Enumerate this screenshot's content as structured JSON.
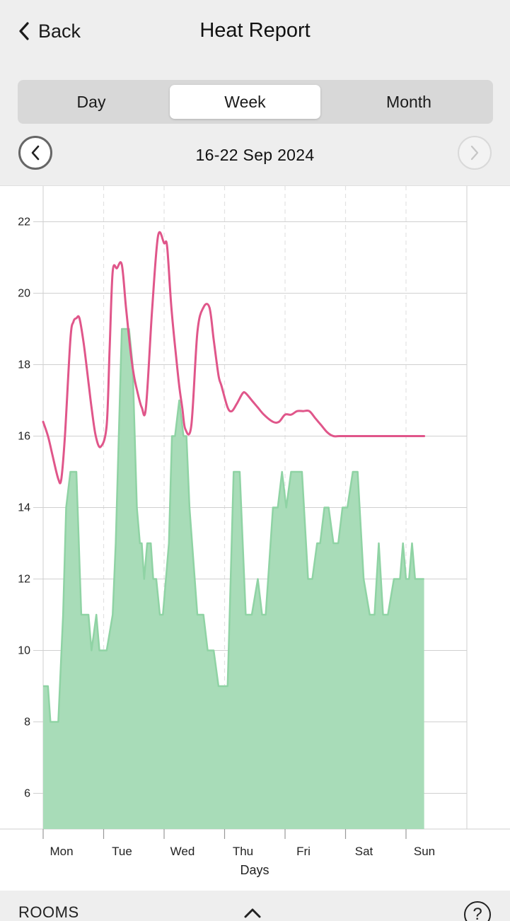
{
  "header": {
    "back_label": "Back",
    "title": "Heat Report"
  },
  "segments": {
    "day": "Day",
    "week": "Week",
    "month": "Month",
    "selected": "Week"
  },
  "date_range": "16-22 Sep 2024",
  "footer": {
    "rooms_label": "ROOMS",
    "help_label": "?"
  },
  "colors": {
    "temperature_line": "#e0568a",
    "heating_fill": "#a8dcb8",
    "heating_stroke": "#8fd3a4",
    "grid": "#d0d0d0"
  },
  "chart_data": {
    "type": "area",
    "xlabel": "Days",
    "ylabel": "",
    "categories": [
      "Mon",
      "Tue",
      "Wed",
      "Thu",
      "Fri",
      "Sat",
      "Sun"
    ],
    "xlim": [
      0,
      7
    ],
    "ylim": [
      5,
      23
    ],
    "yticks": [
      6,
      8,
      10,
      12,
      14,
      16,
      18,
      20,
      22
    ],
    "grid": true,
    "series": [
      {
        "kind": "line",
        "x": [
          0,
          0.08,
          0.15,
          0.25,
          0.3,
          0.36,
          0.45,
          0.5,
          0.55,
          0.6,
          0.67,
          0.75,
          0.8,
          0.87,
          0.95,
          1.05,
          1.1,
          1.15,
          1.22,
          1.3,
          1.37,
          1.45,
          1.5,
          1.55,
          1.63,
          1.7,
          1.8,
          1.9,
          2.0,
          2.05,
          2.12,
          2.2,
          2.25,
          2.3,
          2.35,
          2.45,
          2.55,
          2.65,
          2.75,
          2.82,
          2.9,
          2.95,
          3.05,
          3.12,
          3.2,
          3.3,
          3.35,
          3.45,
          3.55,
          3.65,
          3.8,
          3.9,
          4.0,
          4.1,
          4.2,
          4.3,
          4.4,
          4.5,
          4.6,
          4.7,
          4.8,
          4.9,
          5.0,
          5.1,
          5.2,
          5.3,
          5.4,
          5.5,
          5.6,
          5.7,
          5.8,
          5.9,
          6.0,
          6.1,
          6.2,
          6.3
        ],
        "values": [
          16.4,
          16.0,
          15.5,
          14.8,
          14.8,
          16.0,
          18.7,
          19.2,
          19.3,
          19.3,
          18.6,
          17.5,
          16.8,
          16.0,
          15.7,
          16.3,
          18.5,
          20.6,
          20.7,
          20.8,
          19.6,
          18.3,
          17.7,
          17.3,
          16.8,
          16.8,
          19.5,
          21.6,
          21.4,
          21.3,
          19.6,
          18.2,
          17.4,
          16.8,
          16.2,
          16.3,
          18.9,
          19.6,
          19.6,
          18.7,
          17.7,
          17.4,
          16.8,
          16.7,
          16.9,
          17.2,
          17.2,
          17.0,
          16.8,
          16.6,
          16.4,
          16.4,
          16.6,
          16.6,
          16.7,
          16.7,
          16.7,
          16.5,
          16.3,
          16.1,
          16.0,
          16.0,
          16.0,
          16.0,
          16.0,
          16.0,
          16.0,
          16.0,
          16.0,
          16.0,
          16.0,
          16.0,
          16.0,
          16.0,
          16.0,
          16.0
        ]
      },
      {
        "kind": "area",
        "x": [
          0,
          0.08,
          0.12,
          0.25,
          0.33,
          0.38,
          0.45,
          0.5,
          0.55,
          0.63,
          0.75,
          0.8,
          0.88,
          0.93,
          0.98,
          1.05,
          1.15,
          1.2,
          1.3,
          1.42,
          1.48,
          1.55,
          1.6,
          1.63,
          1.67,
          1.72,
          1.78,
          1.82,
          1.87,
          1.93,
          1.98,
          2.08,
          2.13,
          2.18,
          2.25,
          2.32,
          2.37,
          2.42,
          2.55,
          2.65,
          2.72,
          2.82,
          2.9,
          2.97,
          3.05,
          3.1,
          3.15,
          3.2,
          3.25,
          3.35,
          3.45,
          3.55,
          3.62,
          3.68,
          3.72,
          3.8,
          3.88,
          3.95,
          4.02,
          4.1,
          4.2,
          4.28,
          4.38,
          4.45,
          4.53,
          4.58,
          4.65,
          4.72,
          4.8,
          4.88,
          4.95,
          5.03,
          5.12,
          5.2,
          5.3,
          5.4,
          5.48,
          5.55,
          5.62,
          5.7,
          5.8,
          5.85,
          5.9,
          5.95,
          6.0,
          6.05,
          6.1,
          6.15,
          6.2,
          6.25,
          6.3
        ],
        "values": [
          9,
          9,
          8,
          8,
          11,
          14,
          15,
          15,
          15,
          11,
          11,
          10,
          11,
          10,
          10,
          10,
          11,
          13,
          19,
          19,
          18,
          14,
          13,
          13,
          12,
          13,
          13,
          12,
          12,
          11,
          11,
          13,
          16,
          16,
          17,
          16,
          16,
          14,
          11,
          11,
          10,
          10,
          9,
          9,
          9,
          12,
          15,
          15,
          15,
          11,
          11,
          12,
          11,
          11,
          12,
          14,
          14,
          15,
          14,
          15,
          15,
          15,
          12,
          12,
          13,
          13,
          14,
          14,
          13,
          13,
          14,
          14,
          15,
          15,
          12,
          11,
          11,
          13,
          11,
          11,
          12,
          12,
          12,
          13,
          12,
          12,
          13,
          12,
          12,
          12,
          12
        ]
      }
    ]
  }
}
